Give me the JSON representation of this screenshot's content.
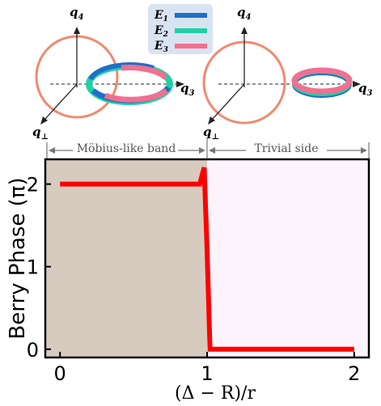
{
  "legend": [
    {
      "name": "E",
      "sub": "1",
      "color": "#1f6fc7"
    },
    {
      "name": "E",
      "sub": "2",
      "color": "#1fd1a5"
    },
    {
      "name": "E",
      "sub": "3",
      "color": "#f07090"
    }
  ],
  "axes3d": {
    "left": {
      "q4": "q",
      "q4_sub": "4",
      "q3": "q",
      "q3_sub": "3",
      "qp": "q",
      "qp_sub": "⊥"
    },
    "right": {
      "q4": "q",
      "q4_sub": "4",
      "q3": "q",
      "q3_sub": "3",
      "qp": "q",
      "qp_sub": "⊥"
    }
  },
  "regions": {
    "left": {
      "label": "Möbius-like band",
      "color": "#d7cbbf"
    },
    "right": {
      "label": "Trivial side",
      "color": "#fdf3fd"
    }
  },
  "chart_data": {
    "type": "line",
    "ylabel": "Berry Phase (π)",
    "xlabel": "(Δ − R)/r",
    "xlim": [
      -0.1,
      2.1
    ],
    "ylim": [
      -0.1,
      2.3
    ],
    "xticks": [
      "0",
      "1",
      "2"
    ],
    "yticks": [
      "0",
      "1",
      "2"
    ],
    "series": [
      {
        "color": "#ff0000",
        "x": [
          0,
          0.95,
          0.98,
          1.0,
          1.02,
          1.05,
          2.0
        ],
        "y": [
          2.0,
          2.0,
          2.2,
          1.2,
          0.0,
          0.0,
          0.0
        ]
      }
    ]
  }
}
